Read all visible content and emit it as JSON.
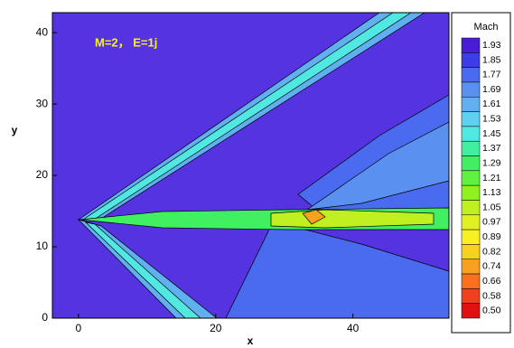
{
  "chart_data": {
    "type": "contour",
    "annotation": "M=2， E=1j",
    "x_label": "x",
    "y_label": "y",
    "xlim": [
      -3.8,
      54
    ],
    "ylim": [
      0,
      42.8
    ],
    "xticks": [
      0,
      20,
      40
    ],
    "yticks": [
      0,
      10,
      20,
      30,
      40
    ],
    "background_color": "#5533e0",
    "colorbar": {
      "title": "Mach",
      "levels": [
        1.93,
        1.85,
        1.77,
        1.69,
        1.61,
        1.53,
        1.45,
        1.37,
        1.29,
        1.21,
        1.13,
        1.05,
        0.97,
        0.89,
        0.82,
        0.74,
        0.66,
        0.58,
        {
          "value": 0.5,
          "label": "0.50"
        }
      ],
      "colors": [
        "#4a1cd8",
        "#3c3ce8",
        "#4a6af0",
        "#5a90f0",
        "#60b0f0",
        "#60d0f0",
        "#50e8e0",
        "#40f0a0",
        "#40f060",
        "#60f040",
        "#90f020",
        "#c0f020",
        "#e0f020",
        "#f8f020",
        "#f8d020",
        "#f8a020",
        "#f87020",
        "#f04020",
        "#e01010"
      ]
    }
  }
}
